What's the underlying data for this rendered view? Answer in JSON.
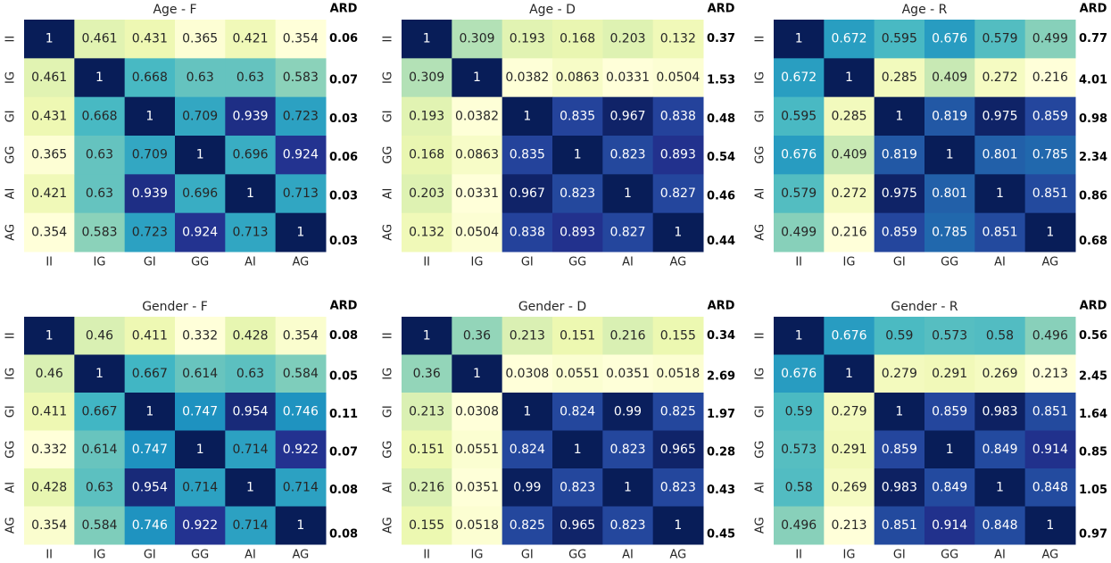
{
  "chart_data": [
    {
      "type": "heatmap",
      "title": "Age - F",
      "categories": [
        "II",
        "IG",
        "GI",
        "GG",
        "AI",
        "AG"
      ],
      "side_title": "ARD",
      "side_values": [
        0.06,
        0.07,
        0.03,
        0.06,
        0.03,
        0.03
      ],
      "colormap": [
        "#ffffd9",
        "#edf8b1",
        "#c7e9b4",
        "#7fcdbb",
        "#41b6c4",
        "#1d91c0",
        "#225ea8",
        "#253494",
        "#081d58"
      ],
      "values": [
        [
          1,
          0.461,
          0.431,
          0.365,
          0.421,
          0.354
        ],
        [
          0.461,
          1,
          0.668,
          0.63,
          0.63,
          0.583
        ],
        [
          0.431,
          0.668,
          1,
          0.709,
          0.939,
          0.723
        ],
        [
          0.365,
          0.63,
          0.709,
          1,
          0.696,
          0.924
        ],
        [
          0.421,
          0.63,
          0.939,
          0.696,
          1,
          0.713
        ],
        [
          0.354,
          0.583,
          0.723,
          0.924,
          0.713,
          1
        ]
      ]
    },
    {
      "type": "heatmap",
      "title": "Age - D",
      "categories": [
        "II",
        "IG",
        "GI",
        "GG",
        "AI",
        "AG"
      ],
      "side_title": "ARD",
      "side_values": [
        0.37,
        1.53,
        0.48,
        0.54,
        0.46,
        0.44
      ],
      "colormap": [
        "#ffffd9",
        "#edf8b1",
        "#c7e9b4",
        "#7fcdbb",
        "#41b6c4",
        "#1d91c0",
        "#225ea8",
        "#253494",
        "#081d58"
      ],
      "values": [
        [
          1,
          0.309,
          0.193,
          0.168,
          0.203,
          0.132
        ],
        [
          0.309,
          1,
          0.0382,
          0.0863,
          0.0331,
          0.0504
        ],
        [
          0.193,
          0.0382,
          1,
          0.835,
          0.967,
          0.838
        ],
        [
          0.168,
          0.0863,
          0.835,
          1,
          0.823,
          0.893
        ],
        [
          0.203,
          0.0331,
          0.967,
          0.823,
          1,
          0.827
        ],
        [
          0.132,
          0.0504,
          0.838,
          0.893,
          0.827,
          1
        ]
      ]
    },
    {
      "type": "heatmap",
      "title": "Age - R",
      "categories": [
        "II",
        "IG",
        "GI",
        "GG",
        "AI",
        "AG"
      ],
      "side_title": "ARD",
      "side_values": [
        0.77,
        4.01,
        0.98,
        2.34,
        0.86,
        0.68
      ],
      "colormap": [
        "#ffffd9",
        "#edf8b1",
        "#c7e9b4",
        "#7fcdbb",
        "#41b6c4",
        "#1d91c0",
        "#225ea8",
        "#253494",
        "#081d58"
      ],
      "values": [
        [
          1,
          0.672,
          0.595,
          0.676,
          0.579,
          0.499
        ],
        [
          0.672,
          1,
          0.285,
          0.409,
          0.272,
          0.216
        ],
        [
          0.595,
          0.285,
          1,
          0.819,
          0.975,
          0.859
        ],
        [
          0.676,
          0.409,
          0.819,
          1,
          0.801,
          0.785
        ],
        [
          0.579,
          0.272,
          0.975,
          0.801,
          1,
          0.851
        ],
        [
          0.499,
          0.216,
          0.859,
          0.785,
          0.851,
          1
        ]
      ]
    },
    {
      "type": "heatmap",
      "title": "Gender - F",
      "categories": [
        "II",
        "IG",
        "GI",
        "GG",
        "AI",
        "AG"
      ],
      "side_title": "ARD",
      "side_values": [
        0.08,
        0.05,
        0.11,
        0.07,
        0.08,
        0.08
      ],
      "colormap": [
        "#ffffd9",
        "#edf8b1",
        "#c7e9b4",
        "#7fcdbb",
        "#41b6c4",
        "#1d91c0",
        "#225ea8",
        "#253494",
        "#081d58"
      ],
      "values": [
        [
          1,
          0.46,
          0.411,
          0.332,
          0.428,
          0.354
        ],
        [
          0.46,
          1,
          0.667,
          0.614,
          0.63,
          0.584
        ],
        [
          0.411,
          0.667,
          1,
          0.747,
          0.954,
          0.746
        ],
        [
          0.332,
          0.614,
          0.747,
          1,
          0.714,
          0.922
        ],
        [
          0.428,
          0.63,
          0.954,
          0.714,
          1,
          0.714
        ],
        [
          0.354,
          0.584,
          0.746,
          0.922,
          0.714,
          1
        ]
      ]
    },
    {
      "type": "heatmap",
      "title": "Gender - D",
      "categories": [
        "II",
        "IG",
        "GI",
        "GG",
        "AI",
        "AG"
      ],
      "side_title": "ARD",
      "side_values": [
        0.34,
        2.69,
        1.97,
        0.28,
        0.43,
        0.45
      ],
      "colormap": [
        "#ffffd9",
        "#edf8b1",
        "#c7e9b4",
        "#7fcdbb",
        "#41b6c4",
        "#1d91c0",
        "#225ea8",
        "#253494",
        "#081d58"
      ],
      "values": [
        [
          1,
          0.36,
          0.213,
          0.151,
          0.216,
          0.155
        ],
        [
          0.36,
          1,
          0.0308,
          0.0551,
          0.0351,
          0.0518
        ],
        [
          0.213,
          0.0308,
          1,
          0.824,
          0.99,
          0.825
        ],
        [
          0.151,
          0.0551,
          0.824,
          1,
          0.823,
          0.965
        ],
        [
          0.216,
          0.0351,
          0.99,
          0.823,
          1,
          0.823
        ],
        [
          0.155,
          0.0518,
          0.825,
          0.965,
          0.823,
          1
        ]
      ]
    },
    {
      "type": "heatmap",
      "title": "Gender - R",
      "categories": [
        "II",
        "IG",
        "GI",
        "GG",
        "AI",
        "AG"
      ],
      "side_title": "ARD",
      "side_values": [
        0.56,
        2.45,
        1.64,
        0.85,
        1.05,
        0.97
      ],
      "colormap": [
        "#ffffd9",
        "#edf8b1",
        "#c7e9b4",
        "#7fcdbb",
        "#41b6c4",
        "#1d91c0",
        "#225ea8",
        "#253494",
        "#081d58"
      ],
      "values": [
        [
          1,
          0.676,
          0.59,
          0.573,
          0.58,
          0.496
        ],
        [
          0.676,
          1,
          0.279,
          0.291,
          0.269,
          0.213
        ],
        [
          0.59,
          0.279,
          1,
          0.859,
          0.983,
          0.851
        ],
        [
          0.573,
          0.291,
          0.859,
          1,
          0.849,
          0.914
        ],
        [
          0.58,
          0.269,
          0.983,
          0.849,
          1,
          0.848
        ],
        [
          0.496,
          0.213,
          0.851,
          0.914,
          0.848,
          1
        ]
      ]
    }
  ]
}
